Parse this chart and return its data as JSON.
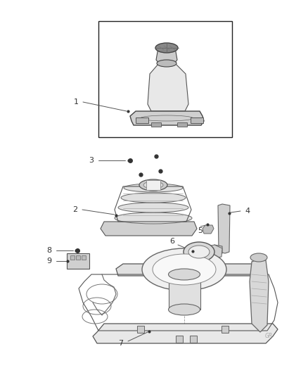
{
  "background_color": "#ffffff",
  "fig_width": 4.38,
  "fig_height": 5.33,
  "dpi": 100,
  "text_color": "#333333",
  "line_color": "#555555",
  "part_color": "#888888",
  "dot_color": "#333333",
  "light_gray": "#cccccc",
  "mid_gray": "#999999",
  "dark_gray": "#444444"
}
